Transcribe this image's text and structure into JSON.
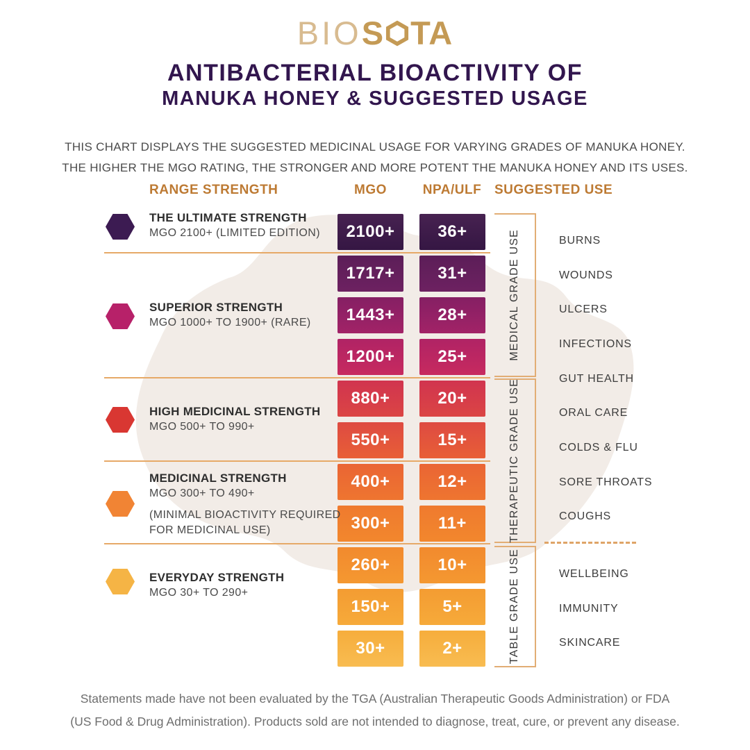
{
  "logo": {
    "bio": "BIO",
    "s": "S",
    "ta": "TA"
  },
  "title": {
    "line1": "ANTIBACTERIAL BIOACTIVITY OF",
    "line2": "MANUKA HONEY & SUGGESTED USAGE"
  },
  "intro": {
    "line1": "THIS CHART DISPLAYS THE SUGGESTED MEDICINAL USAGE FOR VARYING GRADES OF MANUKA HONEY.",
    "line2": "THE HIGHER THE MGO RATING, THE STRONGER AND MORE POTENT THE MANUKA HONEY AND ITS USES."
  },
  "column_headers": {
    "range_strength": "RANGE STRENGTH",
    "mgo": "MGO",
    "npa_ulf": "NPA/ULF",
    "suggested_use": "SUGGESTED USE"
  },
  "chart_data": {
    "type": "table",
    "title": "ANTIBACTERIAL BIOACTIVITY OF MANUKA HONEY & SUGGESTED USAGE",
    "columns": [
      "RANGE STRENGTH",
      "MGO",
      "NPA/ULF",
      "SUGGESTED USE"
    ],
    "rows": [
      {
        "mgo": "2100+",
        "npa_ulf": "36+",
        "grade": "MEDICAL GRADE USE",
        "color_top": "#472251",
        "color_bottom": "#351643"
      },
      {
        "mgo": "1717+",
        "npa_ulf": "31+",
        "grade": "MEDICAL GRADE USE",
        "color_top": "#5c1e58",
        "color_bottom": "#6d2161"
      },
      {
        "mgo": "1443+",
        "npa_ulf": "28+",
        "grade": "MEDICAL GRADE USE",
        "color_top": "#851f64",
        "color_bottom": "#a22367"
      },
      {
        "mgo": "1200+",
        "npa_ulf": "25+",
        "grade": "MEDICAL GRADE USE",
        "color_top": "#b02365",
        "color_bottom": "#c72a5f"
      },
      {
        "mgo": "880+",
        "npa_ulf": "20+",
        "grade": "THERAPEUTIC GRADE USE",
        "color_top": "#d1344f",
        "color_bottom": "#db4544"
      },
      {
        "mgo": "550+",
        "npa_ulf": "15+",
        "grade": "THERAPEUTIC GRADE USE",
        "color_top": "#de4b42",
        "color_bottom": "#e85e36"
      },
      {
        "mgo": "400+",
        "npa_ulf": "12+",
        "grade": "THERAPEUTIC GRADE USE",
        "color_top": "#ea6534",
        "color_bottom": "#ee7530"
      },
      {
        "mgo": "300+",
        "npa_ulf": "11+",
        "grade": "THERAPEUTIC GRADE USE",
        "color_top": "#ef7a2e",
        "color_bottom": "#f2872d"
      },
      {
        "mgo": "260+",
        "npa_ulf": "10+",
        "grade": "TABLE GRADE USE",
        "color_top": "#f28a2e",
        "color_bottom": "#f49831"
      },
      {
        "mgo": "150+",
        "npa_ulf": "5+",
        "grade": "TABLE GRADE USE",
        "color_top": "#f49c32",
        "color_bottom": "#f6aa3a"
      },
      {
        "mgo": "30+",
        "npa_ulf": "2+",
        "grade": "TABLE GRADE USE",
        "color_top": "#f6ad3c",
        "color_bottom": "#f8bc51"
      }
    ],
    "strength_groups": [
      {
        "name": "THE ULTIMATE STRENGTH",
        "range": "MGO 2100+ (LIMITED EDITION)",
        "note": "",
        "hex_color": "#3c1b52"
      },
      {
        "name": "SUPERIOR STRENGTH",
        "range": "MGO 1000+ TO 1900+ (RARE)",
        "note": "",
        "hex_color": "#b72169"
      },
      {
        "name": "HIGH MEDICINAL STRENGTH",
        "range": "MGO 500+ TO 990+",
        "note": "",
        "hex_color": "#d93732"
      },
      {
        "name": "MEDICINAL STRENGTH",
        "range": "MGO 300+ TO 490+",
        "note": "(MINIMAL BIOACTIVITY REQUIRED FOR MEDICINAL USE)",
        "hex_color": "#f18434"
      },
      {
        "name": "EVERYDAY STRENGTH",
        "range": "MGO 30+ TO 290+",
        "note": "",
        "hex_color": "#f5b445"
      }
    ],
    "grade_sections": [
      {
        "label": "MEDICAL GRADE USE",
        "uses": [
          "BURNS",
          "WOUNDS",
          "ULCERS",
          "INFECTIONS"
        ]
      },
      {
        "label": "THERAPEUTIC GRADE USE",
        "uses": [
          "GUT HEALTH",
          "ORAL CARE",
          "COLDS & FLU",
          "SORE THROATS",
          "COUGHS"
        ]
      },
      {
        "label": "TABLE GRADE USE",
        "uses": [
          "WELLBEING",
          "IMMUNITY",
          "SKINCARE"
        ]
      }
    ],
    "accent_colors": {
      "gold_line": "#e6a967",
      "header_text": "#bd7a33",
      "title_purple": "#32164e",
      "bracket_tan": "#e2ad74",
      "logo_gold": "#c49a55"
    }
  },
  "footer": {
    "line1": "Statements made have not been evaluated by the TGA (Australian Therapeutic Goods Administration) or FDA",
    "line2": "(US Food & Drug Administration). Products sold are not intended to diagnose, treat, cure, or prevent any disease."
  }
}
